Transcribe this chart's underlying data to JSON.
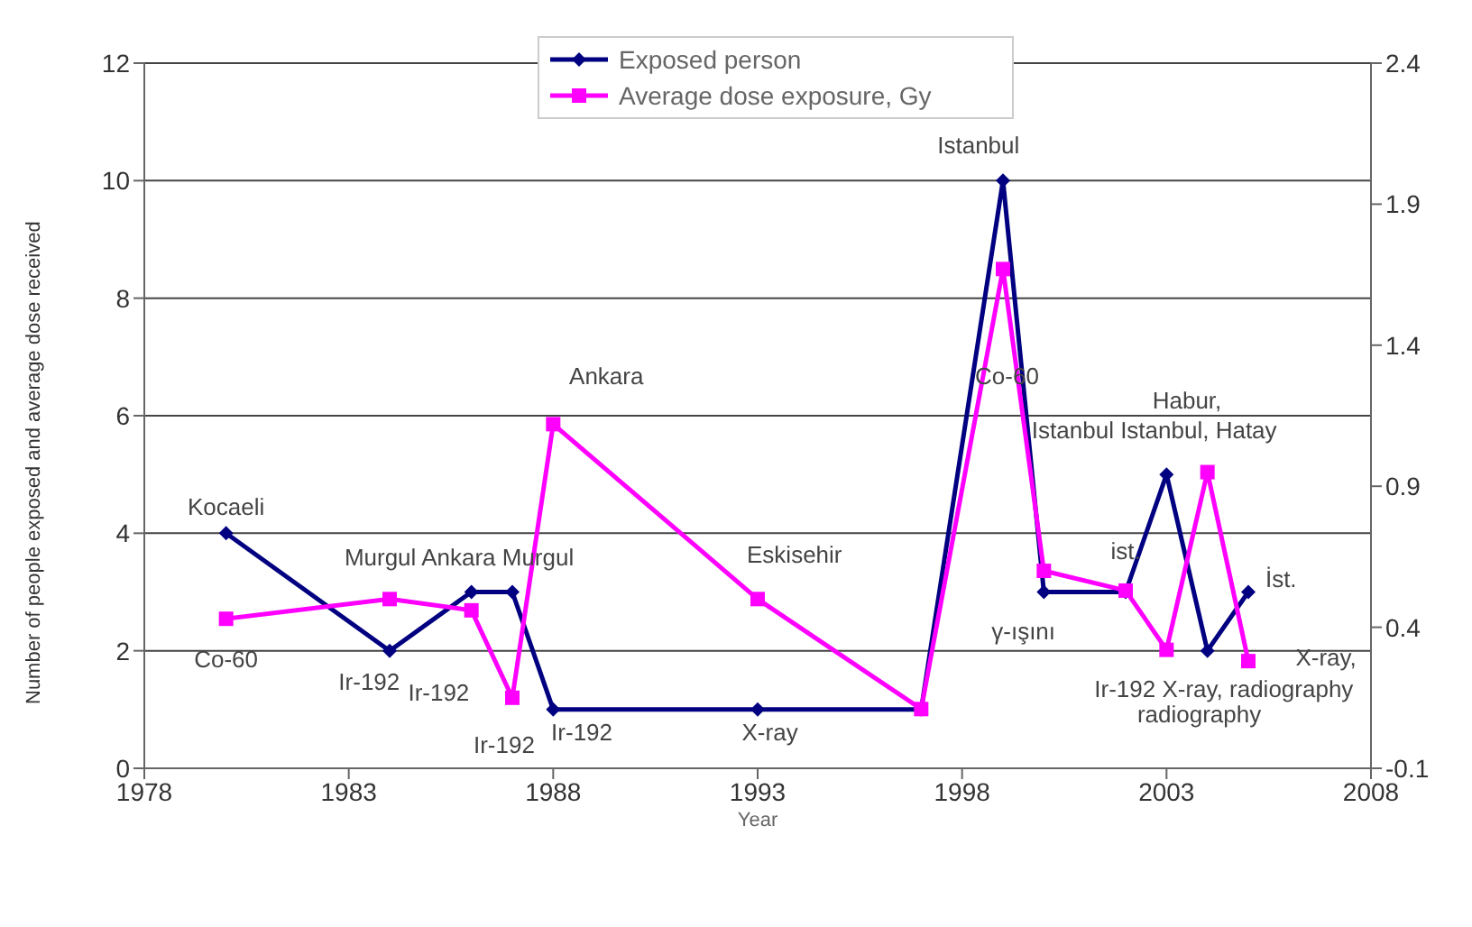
{
  "chart_data": {
    "type": "line",
    "xlabel": "Year",
    "ylabel": "Number of people exposed and average dose received",
    "x": [
      1980,
      1984,
      1986,
      1987,
      1988,
      1993,
      1997,
      1999,
      2000,
      2002,
      2003,
      2004,
      2005
    ],
    "series": [
      {
        "name": "Exposed person",
        "color": "#000080",
        "marker": "diamond",
        "values": [
          4,
          2,
          3,
          3,
          1,
          1,
          1,
          10,
          3,
          3,
          5,
          2,
          3
        ]
      },
      {
        "name": "Average dose exposure, Gy",
        "color": "#ff00ff",
        "marker": "square",
        "axis": "y2",
        "values": [
          0.43,
          0.5,
          0.46,
          0.15,
          1.12,
          0.5,
          0.11,
          1.67,
          0.6,
          0.53,
          0.32,
          0.95,
          0.28
        ]
      }
    ],
    "xlim": [
      1978,
      2008
    ],
    "xticks": [
      1978,
      1983,
      1988,
      1993,
      1998,
      2003,
      2008
    ],
    "ylim": [
      0,
      12
    ],
    "yticks": [
      0,
      2,
      4,
      6,
      8,
      10,
      12
    ],
    "y2lim": [
      -0.1,
      2.4
    ],
    "y2ticks": [
      -0.1,
      0.4,
      0.9,
      1.4,
      1.9,
      2.4
    ],
    "grid": "y",
    "legend": "top",
    "annotations": [
      "Kocaeli",
      "Co-60",
      "Murgul Ankara Murgul",
      "Ir-192",
      "Ir-192",
      "Ir-192",
      "Ir-192",
      "Ankara",
      "Eskisehir",
      "X-ray",
      "Istanbul",
      "Co-60",
      "Habur,",
      "Istanbul Istanbul, Hatay",
      "ist.",
      "γ-ışını",
      "İst.",
      "X-ray,",
      "Ir-192 X-ray, radiography",
      "radiography"
    ]
  }
}
